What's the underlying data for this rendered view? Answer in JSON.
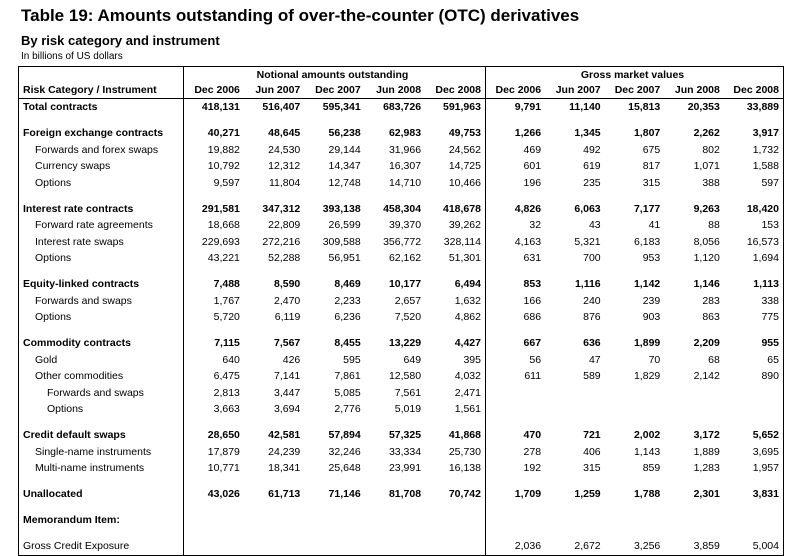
{
  "header": {
    "title": "Table 19: Amounts outstanding of over-the-counter (OTC) derivatives",
    "subtitle": "By risk category and instrument",
    "units": "In billions of US dollars"
  },
  "table": {
    "column_header": "Risk Category / Instrument",
    "groups": [
      {
        "label": "Notional amounts outstanding",
        "columns": [
          "Dec 2006",
          "Jun 2007",
          "Dec 2007",
          "Jun 2008",
          "Dec 2008"
        ]
      },
      {
        "label": "Gross market values",
        "columns": [
          "Dec 2006",
          "Jun 2007",
          "Dec 2007",
          "Jun 2008",
          "Dec 2008"
        ]
      }
    ],
    "rows": [
      {
        "label": "Total contracts",
        "level": 0,
        "bold": true,
        "notional": [
          "418,131",
          "516,407",
          "595,341",
          "683,726",
          "591,963"
        ],
        "gross": [
          "9,791",
          "11,140",
          "15,813",
          "20,353",
          "33,889"
        ]
      },
      {
        "label": "Foreign exchange contracts",
        "level": 0,
        "bold": true,
        "notional": [
          "40,271",
          "48,645",
          "56,238",
          "62,983",
          "49,753"
        ],
        "gross": [
          "1,266",
          "1,345",
          "1,807",
          "2,262",
          "3,917"
        ]
      },
      {
        "label": "Forwards and forex swaps",
        "level": 1,
        "bold": false,
        "notional": [
          "19,882",
          "24,530",
          "29,144",
          "31,966",
          "24,562"
        ],
        "gross": [
          "469",
          "492",
          "675",
          "802",
          "1,732"
        ]
      },
      {
        "label": "Currency swaps",
        "level": 1,
        "bold": false,
        "notional": [
          "10,792",
          "12,312",
          "14,347",
          "16,307",
          "14,725"
        ],
        "gross": [
          "601",
          "619",
          "817",
          "1,071",
          "1,588"
        ]
      },
      {
        "label": "Options",
        "level": 1,
        "bold": false,
        "notional": [
          "9,597",
          "11,804",
          "12,748",
          "14,710",
          "10,466"
        ],
        "gross": [
          "196",
          "235",
          "315",
          "388",
          "597"
        ]
      },
      {
        "label": "Interest rate contracts",
        "level": 0,
        "bold": true,
        "notional": [
          "291,581",
          "347,312",
          "393,138",
          "458,304",
          "418,678"
        ],
        "gross": [
          "4,826",
          "6,063",
          "7,177",
          "9,263",
          "18,420"
        ]
      },
      {
        "label": "Forward rate agreements",
        "level": 1,
        "bold": false,
        "notional": [
          "18,668",
          "22,809",
          "26,599",
          "39,370",
          "39,262"
        ],
        "gross": [
          "32",
          "43",
          "41",
          "88",
          "153"
        ]
      },
      {
        "label": "Interest rate swaps",
        "level": 1,
        "bold": false,
        "notional": [
          "229,693",
          "272,216",
          "309,588",
          "356,772",
          "328,114"
        ],
        "gross": [
          "4,163",
          "5,321",
          "6,183",
          "8,056",
          "16,573"
        ]
      },
      {
        "label": "Options",
        "level": 1,
        "bold": false,
        "notional": [
          "43,221",
          "52,288",
          "56,951",
          "62,162",
          "51,301"
        ],
        "gross": [
          "631",
          "700",
          "953",
          "1,120",
          "1,694"
        ]
      },
      {
        "label": "Equity-linked contracts",
        "level": 0,
        "bold": true,
        "notional": [
          "7,488",
          "8,590",
          "8,469",
          "10,177",
          "6,494"
        ],
        "gross": [
          "853",
          "1,116",
          "1,142",
          "1,146",
          "1,113"
        ]
      },
      {
        "label": "Forwards and swaps",
        "level": 1,
        "bold": false,
        "notional": [
          "1,767",
          "2,470",
          "2,233",
          "2,657",
          "1,632"
        ],
        "gross": [
          "166",
          "240",
          "239",
          "283",
          "338"
        ]
      },
      {
        "label": "Options",
        "level": 1,
        "bold": false,
        "notional": [
          "5,720",
          "6,119",
          "6,236",
          "7,520",
          "4,862"
        ],
        "gross": [
          "686",
          "876",
          "903",
          "863",
          "775"
        ]
      },
      {
        "label": "Commodity contracts",
        "level": 0,
        "bold": true,
        "notional": [
          "7,115",
          "7,567",
          "8,455",
          "13,229",
          "4,427"
        ],
        "gross": [
          "667",
          "636",
          "1,899",
          "2,209",
          "955"
        ]
      },
      {
        "label": "Gold",
        "level": 1,
        "bold": false,
        "notional": [
          "640",
          "426",
          "595",
          "649",
          "395"
        ],
        "gross": [
          "56",
          "47",
          "70",
          "68",
          "65"
        ]
      },
      {
        "label": "Other commodities",
        "level": 1,
        "bold": false,
        "notional": [
          "6,475",
          "7,141",
          "7,861",
          "12,580",
          "4,032"
        ],
        "gross": [
          "611",
          "589",
          "1,829",
          "2,142",
          "890"
        ]
      },
      {
        "label": "Forwards and swaps",
        "level": 2,
        "bold": false,
        "notional": [
          "2,813",
          "3,447",
          "5,085",
          "7,561",
          "2,471"
        ],
        "gross": [
          null,
          null,
          null,
          null,
          null
        ]
      },
      {
        "label": "Options",
        "level": 2,
        "bold": false,
        "notional": [
          "3,663",
          "3,694",
          "2,776",
          "5,019",
          "1,561"
        ],
        "gross": [
          null,
          null,
          null,
          null,
          null
        ]
      },
      {
        "label": "Credit default swaps",
        "level": 0,
        "bold": true,
        "notional": [
          "28,650",
          "42,581",
          "57,894",
          "57,325",
          "41,868"
        ],
        "gross": [
          "470",
          "721",
          "2,002",
          "3,172",
          "5,652"
        ]
      },
      {
        "label": "Single-name instruments",
        "level": 1,
        "bold": false,
        "notional": [
          "17,879",
          "24,239",
          "32,246",
          "33,334",
          "25,730"
        ],
        "gross": [
          "278",
          "406",
          "1,143",
          "1,889",
          "3,695"
        ]
      },
      {
        "label": "Multi-name instruments",
        "level": 1,
        "bold": false,
        "notional": [
          "10,771",
          "18,341",
          "25,648",
          "23,991",
          "16,138"
        ],
        "gross": [
          "192",
          "315",
          "859",
          "1,283",
          "1,957"
        ]
      },
      {
        "label": "Unallocated",
        "level": 0,
        "bold": true,
        "notional": [
          "43,026",
          "61,713",
          "71,146",
          "81,708",
          "70,742"
        ],
        "gross": [
          "1,709",
          "1,259",
          "1,788",
          "2,301",
          "3,831"
        ]
      },
      {
        "label": "Memorandum Item:",
        "level": 0,
        "bold": true,
        "notional": [
          null,
          null,
          null,
          null,
          null
        ],
        "gross": [
          null,
          null,
          null,
          null,
          null
        ]
      },
      {
        "label": "Gross Credit Exposure",
        "level": 0,
        "bold": false,
        "notional": [
          null,
          null,
          null,
          null,
          null
        ],
        "gross": [
          "2,036",
          "2,672",
          "3,256",
          "3,859",
          "5,004"
        ]
      }
    ]
  }
}
